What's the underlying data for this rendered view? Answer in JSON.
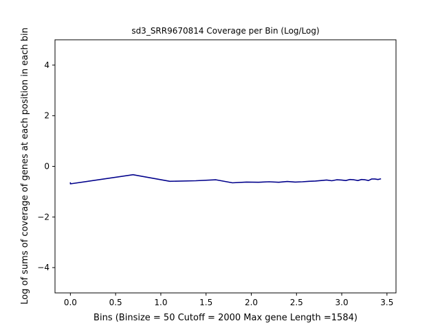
{
  "chart_data": {
    "type": "line",
    "title": "sd3_SRR9670814 Coverage per Bin (Log/Log)",
    "xlabel": "Bins  (Binsize = 50 Cutoff = 2000 Max gene Length =1584)",
    "ylabel": "Log of sums of coverage of genes at each position in each bin",
    "xlim": [
      -0.17,
      3.6
    ],
    "ylim": [
      -5,
      5
    ],
    "x_ticks": [
      0.0,
      0.5,
      1.0,
      1.5,
      2.0,
      2.5,
      3.0,
      3.5
    ],
    "x_tick_labels": [
      "0.0",
      "0.5",
      "1.0",
      "1.5",
      "2.0",
      "2.5",
      "3.0",
      "3.5"
    ],
    "y_ticks": [
      -4,
      -2,
      0,
      2,
      4
    ],
    "y_tick_labels": [
      "−4",
      "−2",
      "0",
      "2",
      "4"
    ],
    "grid": false,
    "line_color": "#00008b",
    "series": [
      {
        "x": [
          0.0,
          0.0,
          0.693,
          1.099,
          1.386,
          1.609,
          1.792,
          1.946,
          2.079,
          2.197,
          2.303,
          2.398,
          2.485,
          2.565,
          2.639,
          2.708,
          2.773,
          2.833,
          2.89,
          2.944,
          2.996,
          3.045,
          3.091,
          3.135,
          3.178,
          3.219,
          3.258,
          3.296,
          3.332,
          3.367,
          3.401,
          3.434
        ],
        "y": [
          -0.63,
          -0.69,
          -0.33,
          -0.59,
          -0.57,
          -0.53,
          -0.65,
          -0.62,
          -0.63,
          -0.61,
          -0.63,
          -0.6,
          -0.62,
          -0.61,
          -0.59,
          -0.58,
          -0.56,
          -0.54,
          -0.57,
          -0.53,
          -0.54,
          -0.56,
          -0.52,
          -0.53,
          -0.56,
          -0.52,
          -0.53,
          -0.56,
          -0.5,
          -0.5,
          -0.52,
          -0.49
        ]
      }
    ]
  }
}
